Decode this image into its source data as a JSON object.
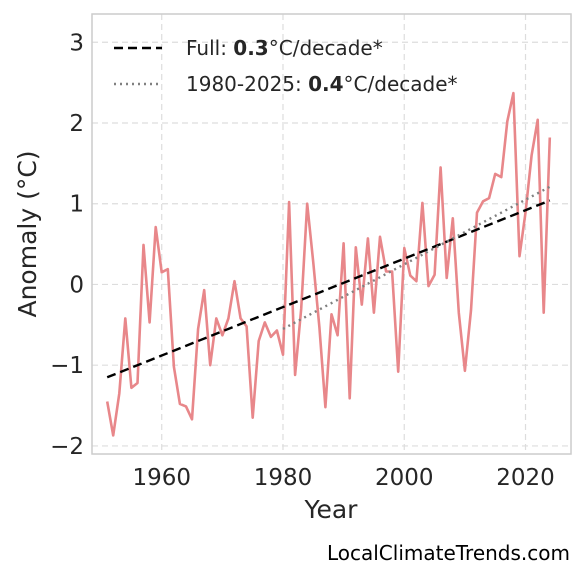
{
  "chart_data": {
    "type": "line",
    "xlabel": "Year",
    "ylabel": "Anomaly (°C)",
    "xlim": [
      1948.5,
      2027.5
    ],
    "ylim": [
      -2.1,
      3.35
    ],
    "xticks": [
      1960,
      1980,
      2000,
      2020
    ],
    "yticks": [
      -2,
      -1,
      0,
      1,
      2,
      3
    ],
    "xtick_labels": [
      "1960",
      "1980",
      "2000",
      "2020"
    ],
    "ytick_labels": [
      "−2",
      "−1",
      "0",
      "1",
      "2",
      "3"
    ],
    "grid": true,
    "legend_position": "top-left",
    "series": [
      {
        "color": "#e8878a",
        "style": "solid",
        "x": [
          1951,
          1952,
          1953,
          1954,
          1955,
          1956,
          1957,
          1958,
          1959,
          1960,
          1961,
          1962,
          1963,
          1964,
          1965,
          1966,
          1967,
          1968,
          1969,
          1970,
          1971,
          1972,
          1973,
          1974,
          1975,
          1976,
          1977,
          1978,
          1979,
          1980,
          1981,
          1982,
          1983,
          1984,
          1985,
          1986,
          1987,
          1988,
          1989,
          1990,
          1991,
          1992,
          1993,
          1994,
          1995,
          1996,
          1997,
          1998,
          1999,
          2000,
          2001,
          2002,
          2003,
          2004,
          2005,
          2006,
          2007,
          2008,
          2009,
          2010,
          2011,
          2012,
          2013,
          2014,
          2015,
          2016,
          2017,
          2018,
          2019,
          2020,
          2021,
          2022,
          2023,
          2024
        ],
        "y": [
          -1.45,
          -1.87,
          -1.35,
          -0.42,
          -1.28,
          -1.22,
          0.49,
          -0.47,
          0.71,
          0.15,
          0.19,
          -1.02,
          -1.48,
          -1.51,
          -1.67,
          -0.55,
          -0.07,
          -1.0,
          -0.42,
          -0.63,
          -0.42,
          0.04,
          -0.42,
          -0.52,
          -1.65,
          -0.7,
          -0.47,
          -0.65,
          -0.57,
          -0.87,
          1.02,
          -1.12,
          -0.3,
          1.0,
          0.27,
          -0.53,
          -1.52,
          -0.37,
          -0.63,
          0.51,
          -1.41,
          0.46,
          -0.25,
          0.57,
          -0.35,
          0.59,
          0.16,
          0.16,
          -1.08,
          0.45,
          0.11,
          0.04,
          1.01,
          -0.02,
          0.12,
          1.45,
          0.08,
          0.82,
          -0.35,
          -1.07,
          -0.32,
          0.89,
          1.03,
          1.07,
          1.37,
          1.33,
          2.02,
          2.37,
          0.35,
          0.89,
          1.6,
          2.04,
          -0.35,
          1.82
        ]
      },
      {
        "name": "Full: 0.3°C/decade*",
        "color": "#000000",
        "style": "dashed",
        "x": [
          1951,
          2024
        ],
        "y": [
          -1.15,
          1.04
        ]
      },
      {
        "name": "1980-2025: 0.4°C/decade*",
        "color": "#808080",
        "style": "dotted",
        "x": [
          1980,
          2024
        ],
        "y": [
          -0.55,
          1.21
        ]
      }
    ],
    "legend": [
      {
        "prefix": "Full: ",
        "bold": "0.3",
        "suffix": "°C/decade*",
        "color": "#000000",
        "style": "dashed"
      },
      {
        "prefix": "1980-2025: ",
        "bold": "0.4",
        "suffix": "°C/decade*",
        "color": "#808080",
        "style": "dotted"
      }
    ]
  },
  "watermark": "LocalClimateTrends.com"
}
